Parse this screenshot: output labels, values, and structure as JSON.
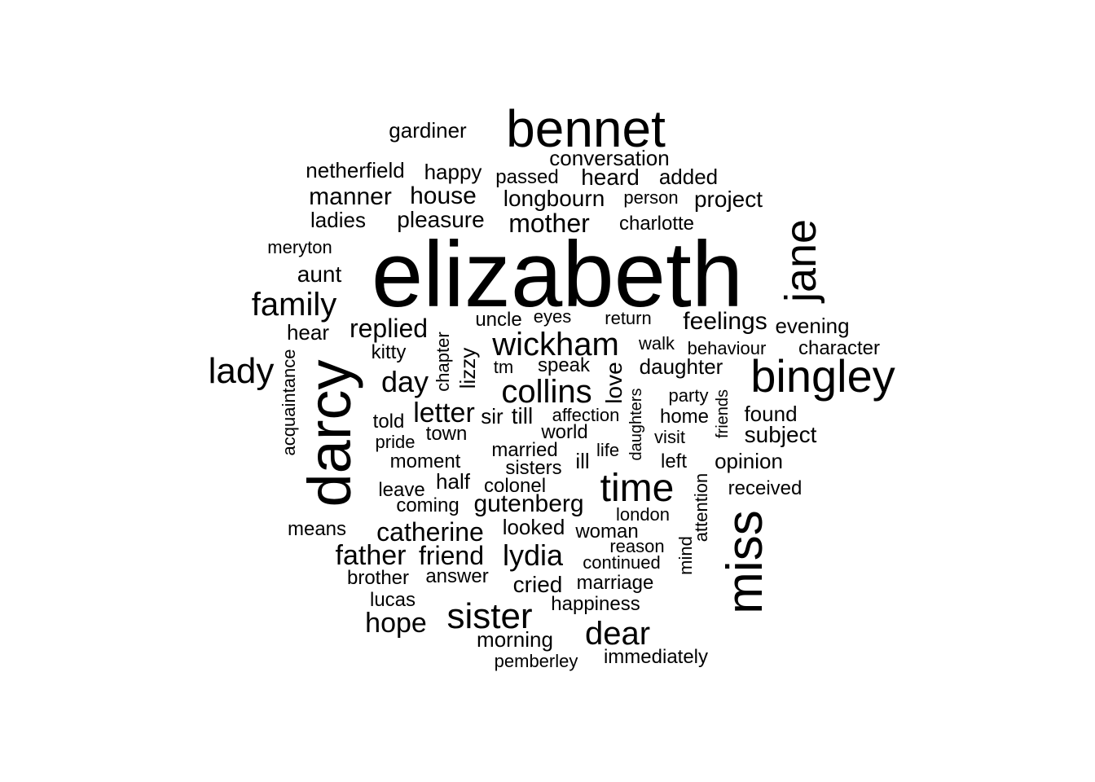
{
  "cloud": {
    "text_color": "#000000",
    "background": "#ffffff",
    "words": {
      "elizabeth": "elizabeth",
      "bennet": "bennet",
      "jane": "jane",
      "bingley": "bingley",
      "darcy": "darcy",
      "miss": "miss",
      "time": "time",
      "sister": "sister",
      "lady": "lady",
      "family": "family",
      "wickham": "wickham",
      "collins": "collins",
      "dear": "dear",
      "day": "day",
      "mother": "mother",
      "lydia": "lydia",
      "letter": "letter",
      "replied": "replied",
      "house": "house",
      "manner": "manner",
      "hope": "hope",
      "catherine": "catherine",
      "father": "father",
      "friend": "friend",
      "feelings": "feelings",
      "longbourn": "longbourn",
      "gardiner": "gardiner",
      "netherfield": "netherfield",
      "happy": "happy",
      "conversation": "conversation",
      "passed": "passed",
      "heard": "heard",
      "added": "added",
      "person": "person",
      "project": "project",
      "ladies": "ladies",
      "pleasure": "pleasure",
      "charlotte": "charlotte",
      "meryton": "meryton",
      "aunt": "aunt",
      "uncle": "uncle",
      "eyes": "eyes",
      "return": "return",
      "evening": "evening",
      "hear": "hear",
      "walk": "walk",
      "behaviour": "behaviour",
      "character": "character",
      "kitty": "kitty",
      "chapter": "chapter",
      "lizzy": "lizzy",
      "tm": "tm",
      "speak": "speak",
      "love": "love",
      "daughter": "daughter",
      "acquaintance": "acquaintance",
      "party": "party",
      "daughters": "daughters",
      "friends": "friends",
      "found": "found",
      "subject": "subject",
      "told": "told",
      "sir": "sir",
      "till": "till",
      "affection": "affection",
      "home": "home",
      "town": "town",
      "world": "world",
      "visit": "visit",
      "pride": "pride",
      "married": "married",
      "life": "life",
      "moment": "moment",
      "ill": "ill",
      "left": "left",
      "opinion": "opinion",
      "sisters": "sisters",
      "attention": "attention",
      "half": "half",
      "colonel": "colonel",
      "received": "received",
      "leave": "leave",
      "gutenberg": "gutenberg",
      "coming": "coming",
      "london": "london",
      "means": "means",
      "looked": "looked",
      "woman": "woman",
      "reason": "reason",
      "mind": "mind",
      "continued": "continued",
      "brother": "brother",
      "answer": "answer",
      "cried": "cried",
      "marriage": "marriage",
      "lucas": "lucas",
      "happiness": "happiness",
      "morning": "morning",
      "pemberley": "pemberley",
      "immediately": "immediately"
    }
  }
}
